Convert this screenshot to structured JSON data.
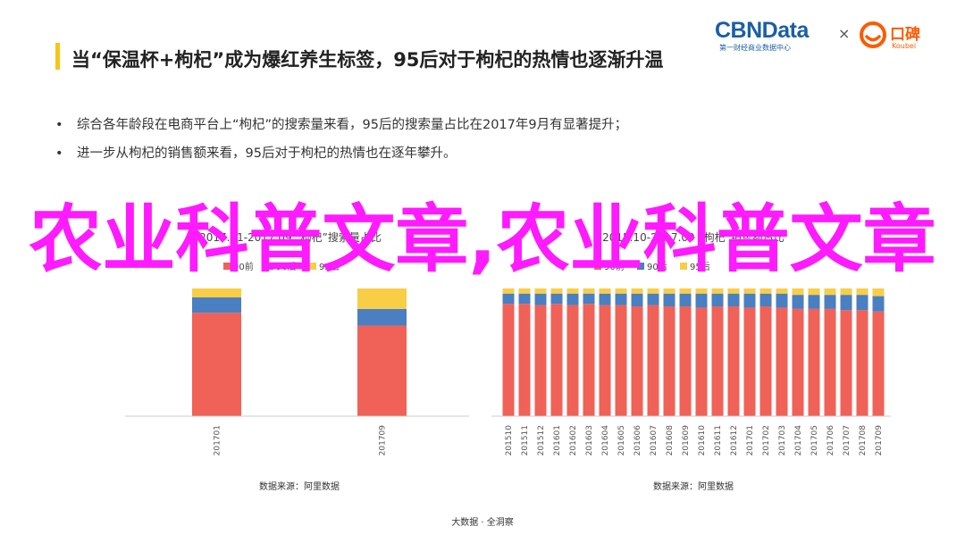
{
  "slide": {
    "title": "当“保温杯+枸杞”成为爆红养生标签，95后对于枸杞的热情也逐渐升温",
    "bullets": [
      "综合各年龄段在电商平台上“枸杞”的搜索量来看，95后的搜索量占比在2017年9月有显著提升；",
      "进一步从枸杞的销售额来看，95后对于枸杞的热情也在逐年攀升。"
    ],
    "footer": "大数据 · 全洞察",
    "overlay": "农业科普文章,农业科普文章"
  },
  "logos": {
    "cbn": "CBNData",
    "cbn_sub": "第一财经商业数据中心",
    "times": "×",
    "koubei": "口碑",
    "koubei_sub": "Koubei"
  },
  "colors": {
    "accent": "#f5c518",
    "red": "#f06157",
    "blue": "#4a7fc1",
    "yellow": "#f7ce46",
    "overlay": "#ff1aff"
  },
  "chart_data": [
    {
      "type": "bar",
      "stacked": true,
      "title": "2017.01-2017.09 “枸杞”搜索量占比",
      "legend": [
        {
          "name": "90前",
          "color": "#f06157"
        },
        {
          "name": "90后",
          "color": "#4a7fc1"
        },
        {
          "name": "95后",
          "color": "#f7ce46"
        }
      ],
      "categories": [
        "201701",
        "201709"
      ],
      "series": [
        {
          "name": "90前",
          "values": [
            81,
            71
          ]
        },
        {
          "name": "90后",
          "values": [
            12,
            13
          ]
        },
        {
          "name": "95后",
          "values": [
            7,
            16
          ]
        }
      ],
      "ylim": [
        0,
        100
      ],
      "source": "数据来源：阿里数据"
    },
    {
      "type": "bar",
      "stacked": true,
      "title": "2015.10-2017.09 “枸杞”销售额占比",
      "legend": [
        {
          "name": "90前",
          "color": "#f06157"
        },
        {
          "name": "90后",
          "color": "#4a7fc1"
        },
        {
          "name": "95后",
          "color": "#f7ce46"
        }
      ],
      "categories": [
        "201510",
        "201511",
        "201512",
        "201601",
        "201602",
        "201603",
        "201604",
        "201605",
        "201606",
        "201607",
        "201608",
        "201609",
        "201610",
        "201611",
        "201612",
        "201701",
        "201702",
        "201703",
        "201704",
        "201705",
        "201706",
        "201707",
        "201708",
        "201709"
      ],
      "series": [
        {
          "name": "90前",
          "values": [
            88,
            88,
            87,
            88,
            87,
            88,
            87,
            87,
            86,
            87,
            86,
            86,
            85,
            86,
            86,
            85,
            86,
            85,
            84,
            84,
            84,
            83,
            83,
            82
          ]
        },
        {
          "name": "90后",
          "values": [
            8,
            8,
            9,
            8,
            9,
            8,
            9,
            9,
            10,
            9,
            10,
            10,
            11,
            10,
            10,
            11,
            10,
            11,
            11,
            11,
            11,
            12,
            12,
            12
          ]
        },
        {
          "name": "95后",
          "values": [
            4,
            4,
            4,
            4,
            4,
            4,
            4,
            4,
            4,
            4,
            4,
            4,
            4,
            4,
            4,
            4,
            4,
            4,
            5,
            5,
            5,
            5,
            5,
            6
          ]
        }
      ],
      "ylim": [
        0,
        100
      ],
      "source": "数据来源：阿里数据"
    }
  ]
}
